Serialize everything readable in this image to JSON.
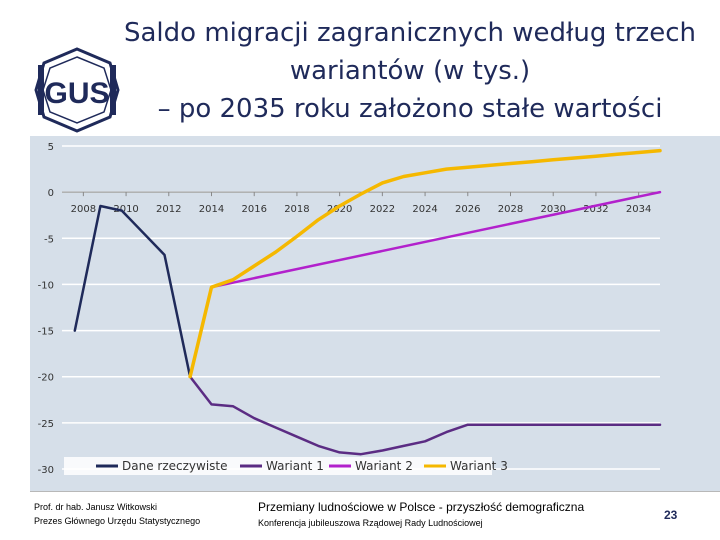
{
  "header": {
    "logo_text": "GUS",
    "title_lines": [
      "Saldo migracji zagranicznych według trzech",
      "wariantów (w tys.)",
      "– po 2035 roku założono stałe wartości"
    ]
  },
  "colors": {
    "plot_bg": "#d6dfe9",
    "grid": "#ffffff",
    "navy": "#1f2a5a"
  },
  "chart_data": {
    "type": "line",
    "title": "Saldo migracji zagranicznych według trzech wariantów (w tys.) – po 2035 roku założono stałe wartości",
    "xlabel": "",
    "ylabel": "",
    "xlim": [
      2007,
      2035
    ],
    "ylim": [
      -30,
      5
    ],
    "y_ticks": [
      5,
      0,
      -5,
      -10,
      -15,
      -20,
      -25,
      -30
    ],
    "x_ticks": [
      "2008",
      "2010",
      "2012",
      "2014",
      "2016",
      "2018",
      "2020",
      "2022",
      "2024",
      "2026",
      "2028",
      "2030",
      "2032",
      "2034"
    ],
    "grid": true,
    "legend_position": "bottom",
    "series": [
      {
        "name": "Dane rzeczywiste",
        "color": "#1f2a5a",
        "x": [
          2007.6,
          2008.8,
          2009.8,
          2011.8,
          2013
        ],
        "y": [
          -15,
          -1.5,
          -2,
          -6.8,
          -20
        ]
      },
      {
        "name": "Wariant 1",
        "color": "#5b2c83",
        "x": [
          2013,
          2014,
          2015,
          2016,
          2017,
          2018,
          2019,
          2020,
          2021,
          2022,
          2023,
          2024,
          2025,
          2026,
          2027,
          2028,
          2029,
          2030,
          2031,
          2032,
          2033,
          2034,
          2035
        ],
        "y": [
          -20,
          -23,
          -23.2,
          -24.5,
          -25.5,
          -26.5,
          -27.5,
          -28.2,
          -28.4,
          -28,
          -27.5,
          -27,
          -26,
          -25.2,
          -25.2,
          -25.2,
          -25.2,
          -25.2,
          -25.2,
          -25.2,
          -25.2,
          -25.2,
          -25.2
        ]
      },
      {
        "name": "Wariant 2",
        "color": "#b221cc",
        "x": [
          2014,
          2035
        ],
        "y": [
          -10.3,
          0
        ]
      },
      {
        "name": "Wariant 3",
        "color": "#f5b800",
        "x": [
          2013,
          2014,
          2015,
          2016,
          2017,
          2018,
          2019,
          2020,
          2021,
          2022,
          2023,
          2024,
          2025,
          2026,
          2027,
          2028,
          2029,
          2030,
          2031,
          2032,
          2033,
          2034,
          2035
        ],
        "y": [
          -20,
          -10.3,
          -9.5,
          -8,
          -6.5,
          -4.8,
          -3,
          -1.5,
          -0.2,
          1,
          1.7,
          2.1,
          2.5,
          2.7,
          2.9,
          3.1,
          3.3,
          3.5,
          3.7,
          3.9,
          4.1,
          4.3,
          4.5
        ]
      }
    ]
  },
  "footer": {
    "author_lines": [
      "Prof. dr hab. Janusz Witkowski",
      "Prezes Głównego Urzędu Statystycznego"
    ],
    "conference_title": "Przemiany ludnościowe w Polsce - przyszłość demograficzna",
    "conference_subtitle": "Konferencja jubileuszowa Rządowej Rady Ludnościowej",
    "page_number": "23"
  }
}
